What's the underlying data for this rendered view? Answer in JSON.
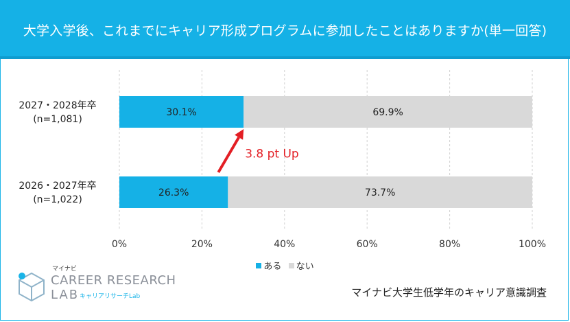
{
  "colors": {
    "accent": "#15b1e6",
    "yes": "#15b1e6",
    "no": "#d9d9d9",
    "arrow": "#e31e24"
  },
  "chart_data": {
    "type": "bar",
    "orientation": "horizontal",
    "stacked": true,
    "percent": true,
    "title": "大学入学後、これまでにキャリア形成プログラムに参加したことはありますか(単一回答)",
    "categories": [
      {
        "label": "2027・2028年卒",
        "sublabel": "(n=1,081)"
      },
      {
        "label": "2026・2027年卒",
        "sublabel": "(n=1,022)"
      }
    ],
    "series": [
      {
        "name": "ある",
        "values": [
          30.1,
          26.3
        ],
        "value_labels": [
          "30.1%",
          "26.3%"
        ]
      },
      {
        "name": "ない",
        "values": [
          69.9,
          73.7
        ],
        "value_labels": [
          "69.9%",
          "73.7%"
        ]
      }
    ],
    "xlim": [
      0,
      100
    ],
    "x_ticks": [
      "0%",
      "20%",
      "40%",
      "60%",
      "80%",
      "100%"
    ],
    "grid": "vertical dashed",
    "legend_position": "bottom",
    "annotation": {
      "text": "3.8 pt Up",
      "from_category": 1,
      "to_category": 0
    }
  },
  "logo": {
    "small_text": "マイナビ",
    "line1": "CAREER RESEARCH",
    "line2": "LAB",
    "sub": "キャリアリサーチLab"
  },
  "source": "マイナビ大学生低学年のキャリア意識調査"
}
